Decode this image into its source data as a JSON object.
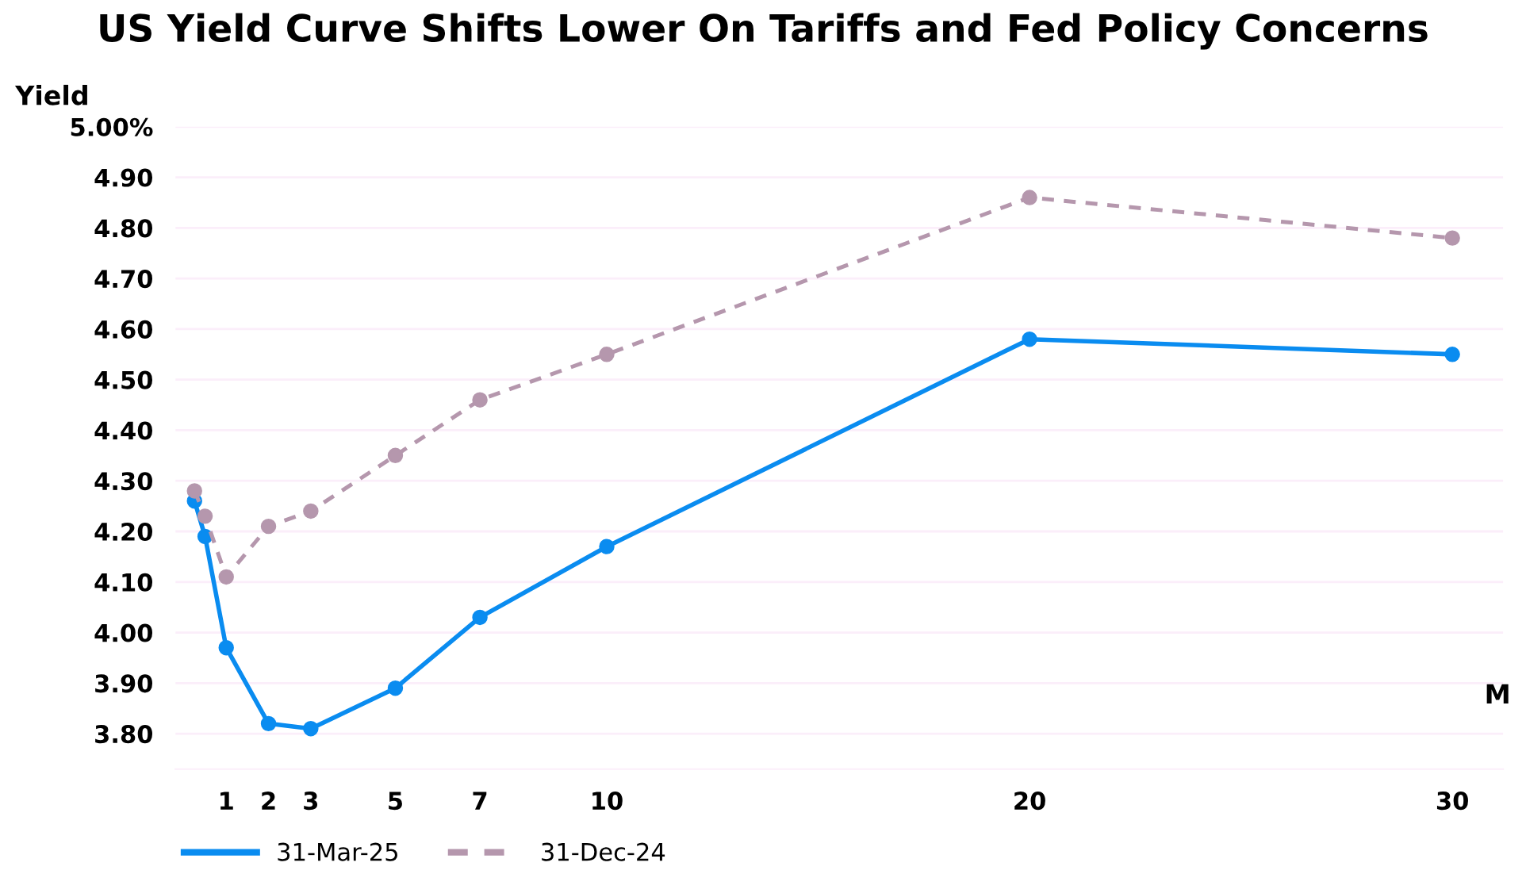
{
  "chart_data": {
    "type": "line",
    "title": "US Yield Curve Shifts Lower On Tariffs and Fed Policy Concerns",
    "ylabel": "Yield",
    "xlabel": "M",
    "x": [
      0.25,
      0.5,
      1,
      2,
      3,
      5,
      7,
      10,
      20,
      30
    ],
    "series": [
      {
        "name": "31-Mar-25",
        "color": "#0a8cf0",
        "line_style": "solid",
        "values": [
          4.26,
          4.19,
          3.97,
          3.82,
          3.81,
          3.89,
          4.03,
          4.17,
          4.58,
          4.55
        ]
      },
      {
        "name": "31-Dec-24",
        "color": "#b597ad",
        "line_style": "dashed",
        "values": [
          4.28,
          4.23,
          4.11,
          4.21,
          4.24,
          4.35,
          4.46,
          4.55,
          4.86,
          4.78
        ]
      }
    ],
    "marker": "circle",
    "xlim": [
      -0.2,
      31.2
    ],
    "xticks": [
      1,
      2,
      3,
      5,
      7,
      10,
      20,
      30
    ],
    "ylim": [
      3.73,
      5.0
    ],
    "yticks": [
      {
        "value": 5.0,
        "label": "5.00%"
      },
      {
        "value": 4.9,
        "label": "4.90"
      },
      {
        "value": 4.8,
        "label": "4.80"
      },
      {
        "value": 4.7,
        "label": "4.70"
      },
      {
        "value": 4.6,
        "label": "4.60"
      },
      {
        "value": 4.5,
        "label": "4.50"
      },
      {
        "value": 4.4,
        "label": "4.40"
      },
      {
        "value": 4.3,
        "label": "4.30"
      },
      {
        "value": 4.2,
        "label": "4.20"
      },
      {
        "value": 4.1,
        "label": "4.10"
      },
      {
        "value": 4.0,
        "label": "4.00"
      },
      {
        "value": 3.9,
        "label": "3.90"
      },
      {
        "value": 3.8,
        "label": "3.80"
      }
    ],
    "grid": "y",
    "legend": "bottom left"
  }
}
